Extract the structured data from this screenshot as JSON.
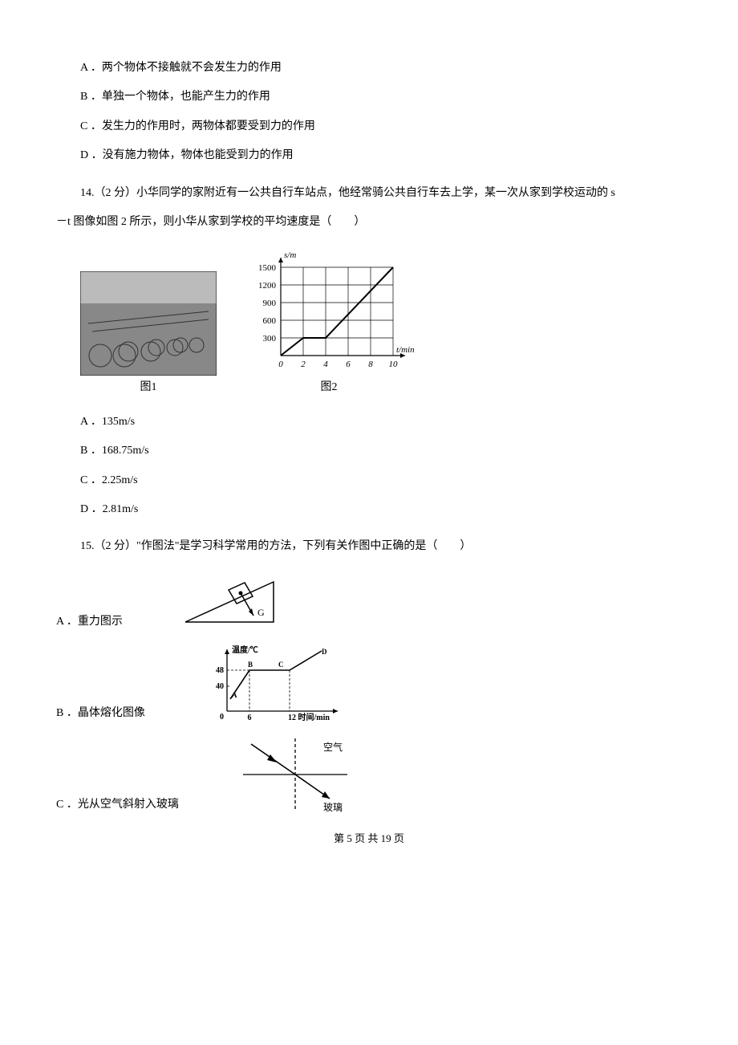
{
  "q13_options": {
    "A": "A ．两个物体不接触就不会发生力的作用",
    "B": "B ．单独一个物体，也能产生力的作用",
    "C": "C ．发生力的作用时，两物体都要受到力的作用",
    "D": "D ．没有施力物体，物体也能受到力的作用"
  },
  "q14": {
    "stem_line1": "14.（2 分）小华同学的家附近有一公共自行车站点，他经常骑公共自行车去上学，某一次从家到学校运动的 s",
    "stem_line2": "－t 图像如图 2 所示，则小华从家到学校的平均速度是（　　）",
    "fig1_caption": "图1",
    "fig2_caption": "图2",
    "options": {
      "A": "A ．135m/s",
      "B": "B ．168.75m/s",
      "C": "C ．2.25m/s",
      "D": "D ．2.81m/s"
    },
    "chart": {
      "type": "line",
      "xlabel": "t/min",
      "ylabel": "s/m",
      "xlim": [
        0,
        10
      ],
      "ylim": [
        0,
        1500
      ],
      "xticks": [
        0,
        2,
        4,
        6,
        8,
        10
      ],
      "yticks": [
        300,
        600,
        900,
        1200,
        1500
      ],
      "xtick_labels": [
        "0",
        "2",
        "4",
        "6",
        "8",
        "10"
      ],
      "ytick_labels": [
        "300",
        "600",
        "900",
        "1200",
        "1500"
      ],
      "line_segments": [
        {
          "x1": 0,
          "y1": 0,
          "x2": 2,
          "y2": 300
        },
        {
          "x1": 2,
          "y1": 300,
          "x2": 4,
          "y2": 300
        },
        {
          "x1": 4,
          "y1": 300,
          "x2": 10,
          "y2": 1500
        }
      ],
      "line_color": "#000000",
      "grid_color": "#000000",
      "background_color": "#ffffff",
      "font_size": 11
    }
  },
  "q15": {
    "stem": "15.（2 分）\"作图法\"是学习科学常用的方法，下列有关作图中正确的是（　　）",
    "options": {
      "A": "A ．重力图示",
      "B": "B ．晶体熔化图像",
      "C": "C ．光从空气斜射入玻璃"
    },
    "figA_label": "G",
    "figB": {
      "ylabel": "温度/℃",
      "xlabel": "12 时间/min",
      "ytick1": "48",
      "ytick2": "40",
      "xtick0": "0",
      "xtick1": "6",
      "pt_A": "A",
      "pt_B": "B",
      "pt_C": "C",
      "pt_D": "D"
    },
    "figC": {
      "label_top": "空气",
      "label_bottom": "玻璃"
    }
  },
  "footer": "第 5 页 共 19 页"
}
